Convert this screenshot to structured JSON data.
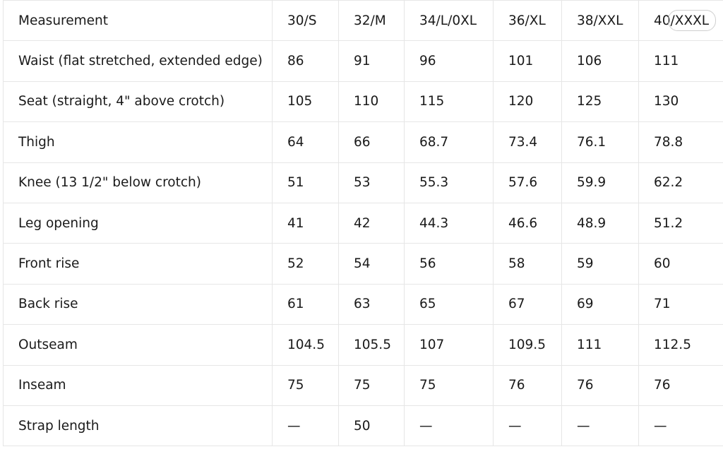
{
  "header": [
    "Measurement",
    "30/S",
    "32/M",
    "34/L/0XL",
    "36/XL",
    "38/XXL",
    "40/XXXL"
  ],
  "rows": [
    [
      "Waist (flat stretched, extended edge)",
      "86",
      "91",
      "96",
      "101",
      "106",
      "111"
    ],
    [
      "Seat (straight, 4\" above crotch)",
      "105",
      "110",
      "115",
      "120",
      "125",
      "130"
    ],
    [
      "Thigh",
      "64",
      "66",
      "68.7",
      "73.4",
      "76.1",
      "78.8"
    ],
    [
      "Knee (13 1/2\" below crotch)",
      "51",
      "53",
      "55.3",
      "57.6",
      "59.9",
      "62.2"
    ],
    [
      "Leg opening",
      "41",
      "42",
      "44.3",
      "46.6",
      "48.9",
      "51.2"
    ],
    [
      "Front rise",
      "52",
      "54",
      "56",
      "58",
      "59",
      "60"
    ],
    [
      "Back rise",
      "61",
      "63",
      "65",
      "67",
      "69",
      "71"
    ],
    [
      "Outseam",
      "104.5",
      "105.5",
      "107",
      "109.5",
      "111",
      "112.5"
    ],
    [
      "Inseam",
      "75",
      "75",
      "75",
      "76",
      "76",
      "76"
    ],
    [
      "Strap length",
      "—",
      "50",
      "—",
      "—",
      "—",
      "—"
    ]
  ]
}
